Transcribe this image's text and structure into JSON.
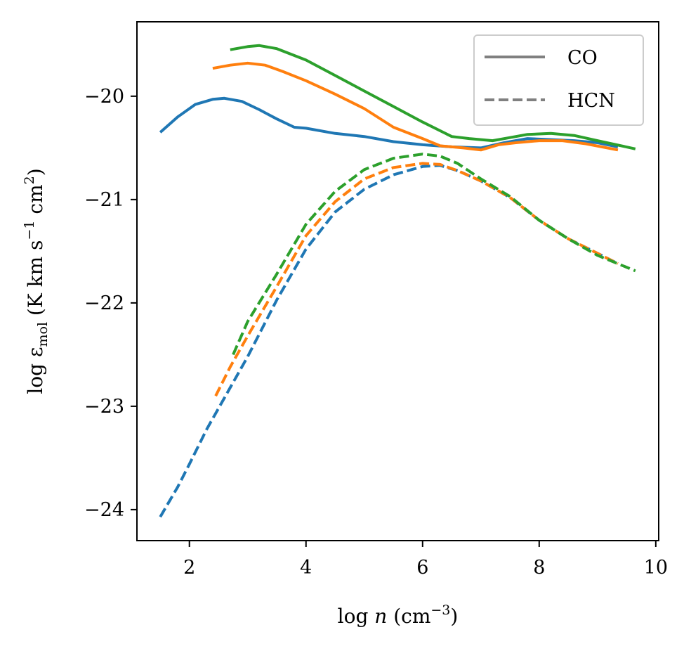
{
  "chart_data": {
    "type": "line",
    "xlabel": "log n (cm^-3)",
    "ylabel": "log ε_mol (K km s^-1 cm^2)",
    "xlim": [
      1.1,
      10.05
    ],
    "ylim": [
      -24.3,
      -19.28
    ],
    "xticks": [
      2,
      4,
      6,
      8,
      10
    ],
    "xtick_labels": [
      "2",
      "4",
      "6",
      "8",
      "10"
    ],
    "yticks": [
      -24,
      -23,
      -22,
      -21,
      -20
    ],
    "ytick_labels": [
      "−24",
      "−23",
      "−22",
      "−21",
      "−20"
    ],
    "legend_position": "top-right",
    "legend": [
      {
        "label": "CO",
        "style": "solid"
      },
      {
        "label": "HCN",
        "style": "dashed"
      }
    ],
    "legend_color": "#808080",
    "grid": false,
    "series": [
      {
        "color": "#1f77b4",
        "style": "solid",
        "points": [
          [
            1.5,
            -20.35
          ],
          [
            1.8,
            -20.2
          ],
          [
            2.1,
            -20.08
          ],
          [
            2.4,
            -20.03
          ],
          [
            2.6,
            -20.02
          ],
          [
            2.9,
            -20.05
          ],
          [
            3.2,
            -20.13
          ],
          [
            3.5,
            -20.22
          ],
          [
            3.8,
            -20.3
          ],
          [
            4.0,
            -20.31
          ],
          [
            4.5,
            -20.36
          ],
          [
            5.0,
            -20.39
          ],
          [
            5.5,
            -20.44
          ],
          [
            6.0,
            -20.47
          ],
          [
            6.5,
            -20.49
          ],
          [
            7.0,
            -20.5
          ],
          [
            7.4,
            -20.45
          ],
          [
            7.8,
            -20.41
          ],
          [
            8.2,
            -20.42
          ],
          [
            8.6,
            -20.43
          ],
          [
            9.0,
            -20.45
          ],
          [
            9.35,
            -20.49
          ]
        ]
      },
      {
        "color": "#ff7f0e",
        "style": "solid",
        "points": [
          [
            2.4,
            -19.73
          ],
          [
            2.7,
            -19.7
          ],
          [
            3.0,
            -19.68
          ],
          [
            3.3,
            -19.7
          ],
          [
            3.6,
            -19.76
          ],
          [
            4.0,
            -19.85
          ],
          [
            4.5,
            -19.98
          ],
          [
            5.0,
            -20.12
          ],
          [
            5.5,
            -20.3
          ],
          [
            6.0,
            -20.41
          ],
          [
            6.3,
            -20.48
          ],
          [
            6.7,
            -20.5
          ],
          [
            7.0,
            -20.52
          ],
          [
            7.3,
            -20.47
          ],
          [
            7.6,
            -20.45
          ],
          [
            8.0,
            -20.43
          ],
          [
            8.4,
            -20.43
          ],
          [
            8.8,
            -20.46
          ],
          [
            9.35,
            -20.52
          ]
        ]
      },
      {
        "color": "#2ca02c",
        "style": "solid",
        "points": [
          [
            2.7,
            -19.55
          ],
          [
            3.0,
            -19.52
          ],
          [
            3.2,
            -19.51
          ],
          [
            3.5,
            -19.54
          ],
          [
            4.0,
            -19.65
          ],
          [
            4.5,
            -19.8
          ],
          [
            5.0,
            -19.95
          ],
          [
            5.5,
            -20.1
          ],
          [
            6.0,
            -20.25
          ],
          [
            6.5,
            -20.39
          ],
          [
            6.8,
            -20.41
          ],
          [
            7.2,
            -20.43
          ],
          [
            7.5,
            -20.4
          ],
          [
            7.8,
            -20.37
          ],
          [
            8.2,
            -20.36
          ],
          [
            8.6,
            -20.38
          ],
          [
            9.0,
            -20.43
          ],
          [
            9.65,
            -20.51
          ]
        ]
      },
      {
        "color": "#1f77b4",
        "style": "dashed",
        "points": [
          [
            1.5,
            -24.07
          ],
          [
            1.8,
            -23.78
          ],
          [
            2.0,
            -23.56
          ],
          [
            2.3,
            -23.22
          ],
          [
            2.6,
            -22.92
          ],
          [
            3.0,
            -22.52
          ],
          [
            3.5,
            -21.97
          ],
          [
            4.0,
            -21.48
          ],
          [
            4.5,
            -21.12
          ],
          [
            5.0,
            -20.9
          ],
          [
            5.5,
            -20.76
          ],
          [
            6.0,
            -20.68
          ],
          [
            6.3,
            -20.67
          ],
          [
            6.6,
            -20.72
          ],
          [
            7.0,
            -20.82
          ],
          [
            7.5,
            -20.98
          ],
          [
            8.0,
            -21.2
          ],
          [
            8.5,
            -21.38
          ],
          [
            9.0,
            -21.52
          ],
          [
            9.35,
            -21.62
          ]
        ]
      },
      {
        "color": "#ff7f0e",
        "style": "dashed",
        "points": [
          [
            2.45,
            -22.9
          ],
          [
            2.7,
            -22.62
          ],
          [
            3.0,
            -22.32
          ],
          [
            3.5,
            -21.84
          ],
          [
            4.0,
            -21.35
          ],
          [
            4.5,
            -21.02
          ],
          [
            5.0,
            -20.8
          ],
          [
            5.5,
            -20.69
          ],
          [
            6.0,
            -20.65
          ],
          [
            6.3,
            -20.66
          ],
          [
            6.6,
            -20.72
          ],
          [
            7.0,
            -20.82
          ],
          [
            7.5,
            -20.98
          ],
          [
            8.0,
            -21.2
          ],
          [
            8.5,
            -21.38
          ],
          [
            9.0,
            -21.52
          ],
          [
            9.35,
            -21.62
          ]
        ]
      },
      {
        "color": "#2ca02c",
        "style": "dashed",
        "points": [
          [
            2.75,
            -22.5
          ],
          [
            3.0,
            -22.18
          ],
          [
            3.5,
            -21.72
          ],
          [
            4.0,
            -21.24
          ],
          [
            4.5,
            -20.92
          ],
          [
            5.0,
            -20.71
          ],
          [
            5.5,
            -20.6
          ],
          [
            6.0,
            -20.56
          ],
          [
            6.3,
            -20.58
          ],
          [
            6.6,
            -20.65
          ],
          [
            7.0,
            -20.8
          ],
          [
            7.5,
            -20.97
          ],
          [
            8.0,
            -21.2
          ],
          [
            8.5,
            -21.38
          ],
          [
            9.0,
            -21.54
          ],
          [
            9.65,
            -21.69
          ]
        ]
      }
    ]
  }
}
